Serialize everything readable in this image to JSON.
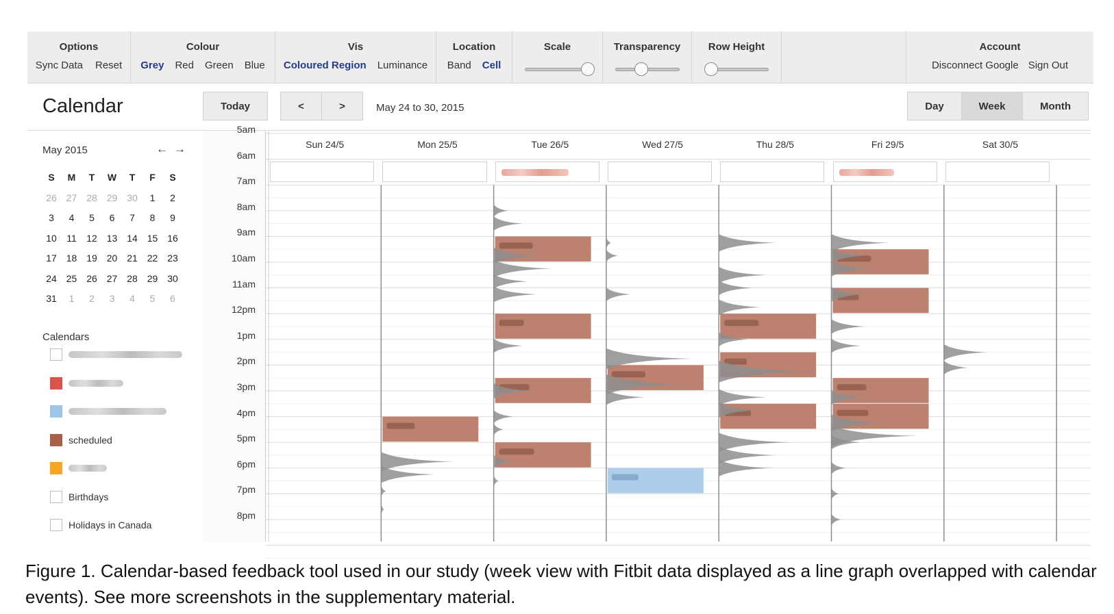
{
  "toolbar": {
    "options": {
      "title": "Options",
      "items": [
        "Sync Data",
        "Reset"
      ]
    },
    "colour": {
      "title": "Colour",
      "items": [
        "Grey",
        "Red",
        "Green",
        "Blue"
      ],
      "active": "Grey"
    },
    "vis": {
      "title": "Vis",
      "items": [
        "Coloured Region",
        "Luminance"
      ],
      "active": "Coloured Region"
    },
    "location": {
      "title": "Location",
      "items": [
        "Band",
        "Cell"
      ],
      "active": "Cell"
    },
    "scale": {
      "title": "Scale",
      "value": 1.0
    },
    "transparency": {
      "title": "Transparency",
      "value": 0.4
    },
    "row_height": {
      "title": "Row Height",
      "value": 0.0
    },
    "account": {
      "title": "Account",
      "items": [
        "Disconnect Google",
        "Sign Out"
      ]
    }
  },
  "header": {
    "title": "Calendar",
    "today": "Today",
    "prev": "<",
    "next": ">",
    "range": "May 24 to 30, 2015",
    "views": [
      "Day",
      "Week",
      "Month"
    ],
    "active_view": "Week"
  },
  "mini_calendar": {
    "title": "May 2015",
    "prev": "←",
    "next": "→",
    "weekdays": [
      "S",
      "M",
      "T",
      "W",
      "T",
      "F",
      "S"
    ],
    "weeks": [
      [
        "26",
        "27",
        "28",
        "29",
        "30",
        "1",
        "2"
      ],
      [
        "3",
        "4",
        "5",
        "6",
        "7",
        "8",
        "9"
      ],
      [
        "10",
        "11",
        "12",
        "13",
        "14",
        "15",
        "16"
      ],
      [
        "17",
        "18",
        "19",
        "20",
        "21",
        "22",
        "23"
      ],
      [
        "24",
        "25",
        "26",
        "27",
        "28",
        "29",
        "30"
      ],
      [
        "31",
        "1",
        "2",
        "3",
        "4",
        "5",
        "6"
      ]
    ]
  },
  "calendars": {
    "title": "Calendars",
    "items": [
      {
        "label": "",
        "color": "",
        "blurred": true
      },
      {
        "label": "",
        "color": "#d9534f",
        "blurred": true
      },
      {
        "label": "",
        "color": "#9fc5e8",
        "blurred": true
      },
      {
        "label": "scheduled",
        "color": "#a8604a",
        "blurred": false
      },
      {
        "label": "",
        "color": "#f5a623",
        "blurred": true
      },
      {
        "label": "Birthdays",
        "color": "",
        "blurred": false
      },
      {
        "label": "Holidays in Canada",
        "color": "",
        "blurred": false
      }
    ]
  },
  "time_labels": [
    "5am",
    "6am",
    "7am",
    "8am",
    "9am",
    "10am",
    "11am",
    "12pm",
    "1pm",
    "2pm",
    "3pm",
    "4pm",
    "5pm",
    "6pm",
    "7pm",
    "8pm"
  ],
  "days": [
    "Sun 24/5",
    "Mon 25/5",
    "Tue 26/5",
    "Wed 27/5",
    "Thu 28/5",
    "Fri 29/5",
    "Sat 30/5"
  ],
  "allday_has_event": [
    false,
    false,
    true,
    false,
    false,
    true,
    false
  ],
  "colors": {
    "scheduled": "#b97a68",
    "personal_blue": "#a9cbea",
    "activity": "#8e8e8e",
    "allday_event": "#e8a99f"
  },
  "events": [
    {
      "day": 1,
      "start": 16.0,
      "end": 17.0,
      "calendar": "scheduled"
    },
    {
      "day": 2,
      "start": 9.0,
      "end": 10.0,
      "calendar": "scheduled"
    },
    {
      "day": 2,
      "start": 12.0,
      "end": 13.0,
      "calendar": "scheduled"
    },
    {
      "day": 2,
      "start": 14.5,
      "end": 15.5,
      "calendar": "scheduled"
    },
    {
      "day": 2,
      "start": 17.0,
      "end": 18.0,
      "calendar": "scheduled"
    },
    {
      "day": 3,
      "start": 14.0,
      "end": 15.0,
      "calendar": "scheduled"
    },
    {
      "day": 3,
      "start": 18.0,
      "end": 19.0,
      "calendar": "personal_blue"
    },
    {
      "day": 4,
      "start": 12.0,
      "end": 13.0,
      "calendar": "scheduled"
    },
    {
      "day": 4,
      "start": 13.5,
      "end": 14.5,
      "calendar": "scheduled"
    },
    {
      "day": 4,
      "start": 15.5,
      "end": 16.5,
      "calendar": "scheduled"
    },
    {
      "day": 5,
      "start": 9.5,
      "end": 10.5,
      "calendar": "scheduled"
    },
    {
      "day": 5,
      "start": 11.0,
      "end": 12.0,
      "calendar": "scheduled"
    },
    {
      "day": 5,
      "start": 14.5,
      "end": 15.5,
      "calendar": "scheduled"
    },
    {
      "day": 5,
      "start": 15.5,
      "end": 16.5,
      "calendar": "scheduled"
    }
  ],
  "activity": [
    {
      "day": 1,
      "peaks": [
        [
          17.75,
          0.75
        ],
        [
          18.25,
          0.55
        ],
        [
          18.9,
          0.05
        ],
        [
          19.6,
          0.03
        ]
      ]
    },
    {
      "day": 2,
      "peaks": [
        [
          8.0,
          0.15
        ],
        [
          8.5,
          0.3
        ],
        [
          9.75,
          0.5
        ],
        [
          10.25,
          0.6
        ],
        [
          10.75,
          0.35
        ],
        [
          11.25,
          0.45
        ],
        [
          13.25,
          0.3
        ],
        [
          15.0,
          0.4
        ],
        [
          16.0,
          0.2
        ],
        [
          16.5,
          0.1
        ],
        [
          17.75,
          0.2
        ],
        [
          18.5,
          0.05
        ]
      ]
    },
    {
      "day": 3,
      "peaks": [
        [
          9.25,
          0.05
        ],
        [
          9.75,
          0.12
        ],
        [
          11.25,
          0.25
        ],
        [
          13.75,
          0.9
        ],
        [
          14.75,
          0.85
        ],
        [
          15.25,
          0.4
        ]
      ]
    },
    {
      "day": 4,
      "peaks": [
        [
          9.25,
          0.6
        ],
        [
          10.5,
          0.5
        ],
        [
          11.0,
          0.35
        ],
        [
          11.75,
          0.45
        ],
        [
          13.0,
          0.3
        ],
        [
          14.25,
          1.0
        ],
        [
          15.25,
          0.5
        ],
        [
          15.75,
          0.4
        ],
        [
          17.0,
          0.75
        ],
        [
          17.5,
          0.6
        ],
        [
          18.0,
          0.55
        ]
      ]
    },
    {
      "day": 5,
      "peaks": [
        [
          9.25,
          0.6
        ],
        [
          9.75,
          0.35
        ],
        [
          10.25,
          0.45
        ],
        [
          11.25,
          0.35
        ],
        [
          12.5,
          0.35
        ],
        [
          13.25,
          0.3
        ],
        [
          15.25,
          0.35
        ],
        [
          16.25,
          0.55
        ],
        [
          16.75,
          0.9
        ],
        [
          17.0,
          0.3
        ],
        [
          18.0,
          0.15
        ],
        [
          19.0,
          0.08
        ],
        [
          20.0,
          0.1
        ]
      ]
    },
    {
      "day": 6,
      "peaks": [
        [
          13.5,
          0.45
        ],
        [
          14.1,
          0.25
        ]
      ]
    }
  ],
  "caption": "Figure 1. Calendar-based feedback tool used in our study (week view with Fitbit data displayed as a line graph overlapped with calendar events). See more screenshots in the supplementary material."
}
